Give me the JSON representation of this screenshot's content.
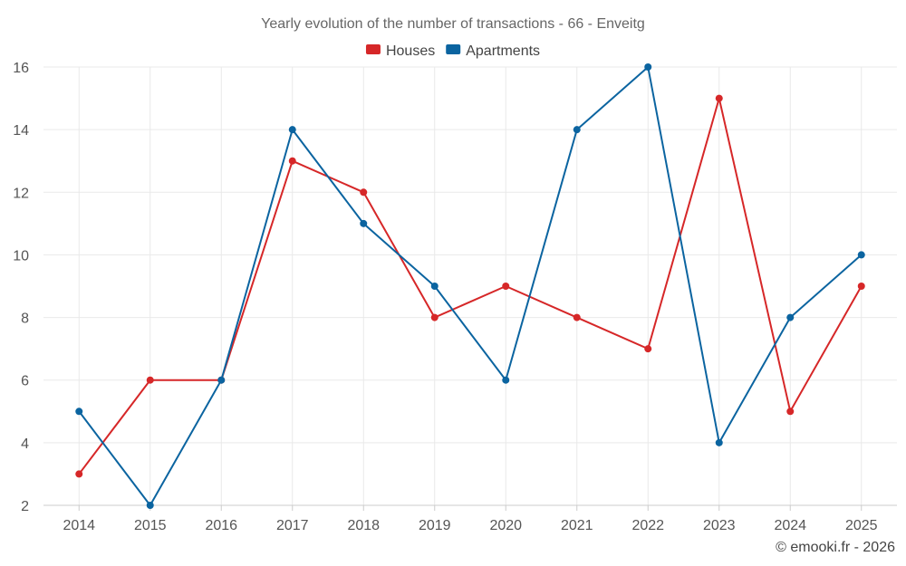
{
  "chart_data": {
    "type": "line",
    "title": "Yearly evolution of the number of transactions - 66 - Enveitg",
    "categories": [
      "2014",
      "2015",
      "2016",
      "2017",
      "2018",
      "2019",
      "2020",
      "2021",
      "2022",
      "2023",
      "2024",
      "2025"
    ],
    "series": [
      {
        "name": "Houses",
        "color": "#d62728",
        "values": [
          3,
          6,
          6,
          13,
          12,
          8,
          9,
          8,
          7,
          15,
          5,
          9
        ]
      },
      {
        "name": "Apartments",
        "color": "#0b64a0",
        "values": [
          5,
          2,
          6,
          14,
          11,
          9,
          6,
          14,
          16,
          4,
          8,
          10
        ]
      }
    ],
    "ylim": [
      2,
      16
    ],
    "yticks": [
      "2",
      "4",
      "6",
      "8",
      "10",
      "12",
      "14",
      "16"
    ],
    "legend_position": "top-center",
    "grid": true
  },
  "credit": "© emooki.fr - 2026"
}
